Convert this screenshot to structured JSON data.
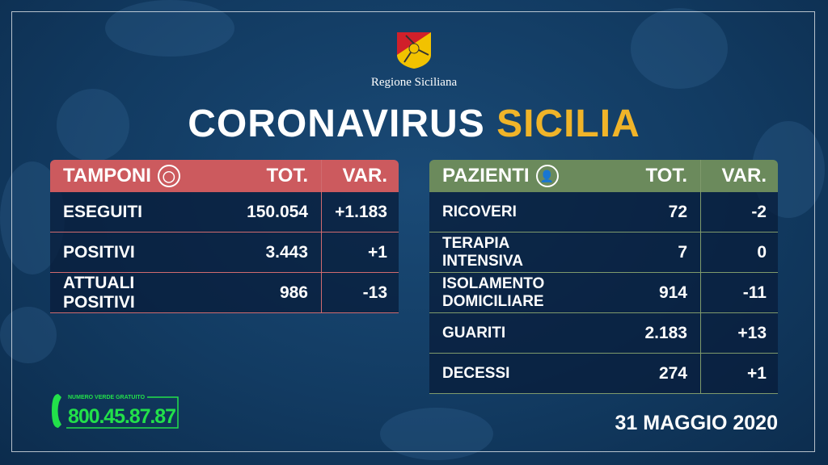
{
  "header": {
    "region": "Regione Siciliana",
    "title_white": "CORONAVIRUS",
    "title_yellow": "SICILIA"
  },
  "colors": {
    "tamponi_header": "#cc5a5e",
    "pazienti_header": "#6b8a5c",
    "accent_yellow": "#f0b429",
    "hotline_green": "#22e04a",
    "background": "#123b62"
  },
  "tamponi": {
    "title": "TAMPONI",
    "icon": "swab-icon",
    "tot_label": "TOT.",
    "var_label": "VAR.",
    "rows": [
      {
        "label": "ESEGUITI",
        "tot": "150.054",
        "var": "+1.183"
      },
      {
        "label": "POSITIVI",
        "tot": "3.443",
        "var": "+1"
      },
      {
        "label": "ATTUALI POSITIVI",
        "tot": "986",
        "var": "-13"
      }
    ]
  },
  "pazienti": {
    "title": "PAZIENTI",
    "icon": "person-icon",
    "tot_label": "TOT.",
    "var_label": "VAR.",
    "rows": [
      {
        "label": "RICOVERI",
        "tot": "72",
        "var": "-2"
      },
      {
        "label": "TERAPIA INTENSIVA",
        "tot": "7",
        "var": "0"
      },
      {
        "label": "ISOLAMENTO DOMICILIARE",
        "tot": "914",
        "var": "-11"
      },
      {
        "label": "GUARITI",
        "tot": "2.183",
        "var": "+13"
      },
      {
        "label": "DECESSI",
        "tot": "274",
        "var": "+1"
      }
    ]
  },
  "hotline": {
    "caption": "NUMERO VERDE GRATUITO",
    "number": "800.45.87.87"
  },
  "date": "31 MAGGIO 2020"
}
